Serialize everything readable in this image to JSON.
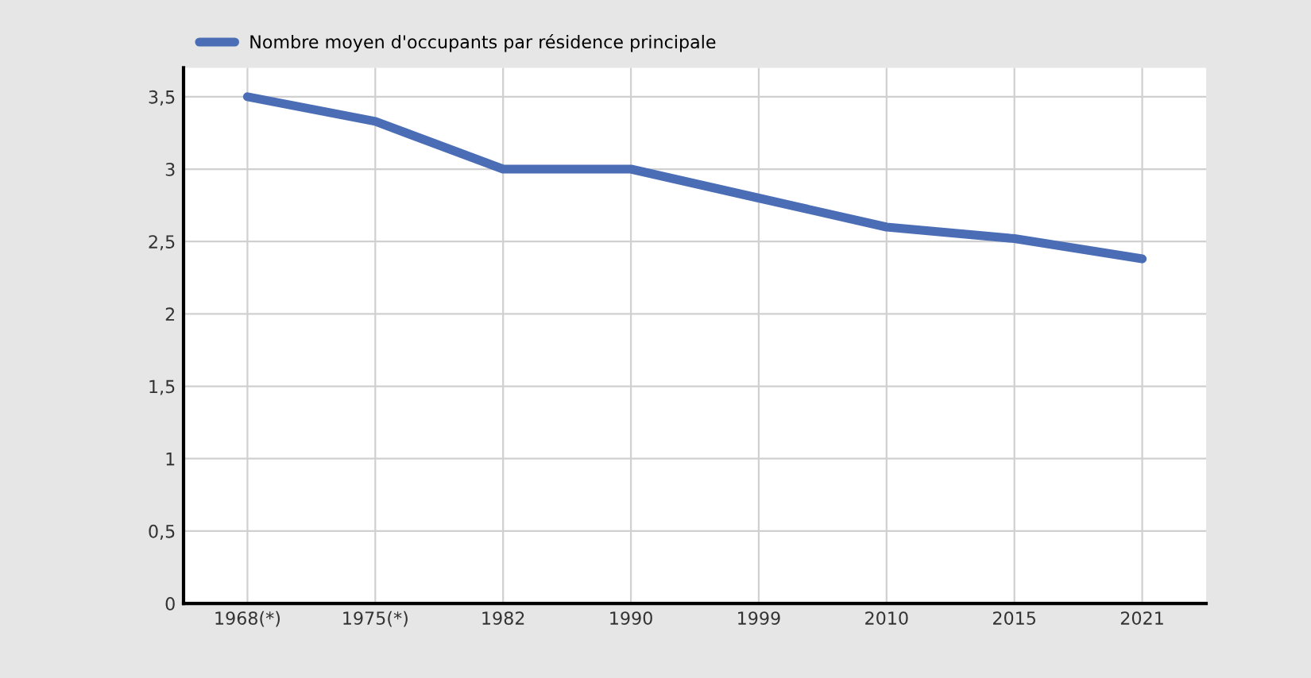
{
  "chart_data": {
    "type": "line",
    "categories": [
      "1968(*)",
      "1975(*)",
      "1982",
      "1990",
      "1999",
      "2010",
      "2015",
      "2021"
    ],
    "series": [
      {
        "name": "Nombre moyen d'occupants par résidence principale",
        "color": "#4a6db5",
        "values": [
          3.5,
          3.33,
          3.0,
          3.0,
          2.8,
          2.6,
          2.52,
          2.38
        ]
      }
    ],
    "ylim": [
      0,
      3.7
    ],
    "yticks": [
      0,
      {
        "value": 0.5,
        "label": "0,5"
      },
      1,
      {
        "value": 1.5,
        "label": "1,5"
      },
      2,
      {
        "value": 2.5,
        "label": "2,5"
      },
      3,
      {
        "value": 3.5,
        "label": "3,5"
      }
    ],
    "grid": true,
    "legend": "top left",
    "marker": "none",
    "line_style": "solid"
  }
}
